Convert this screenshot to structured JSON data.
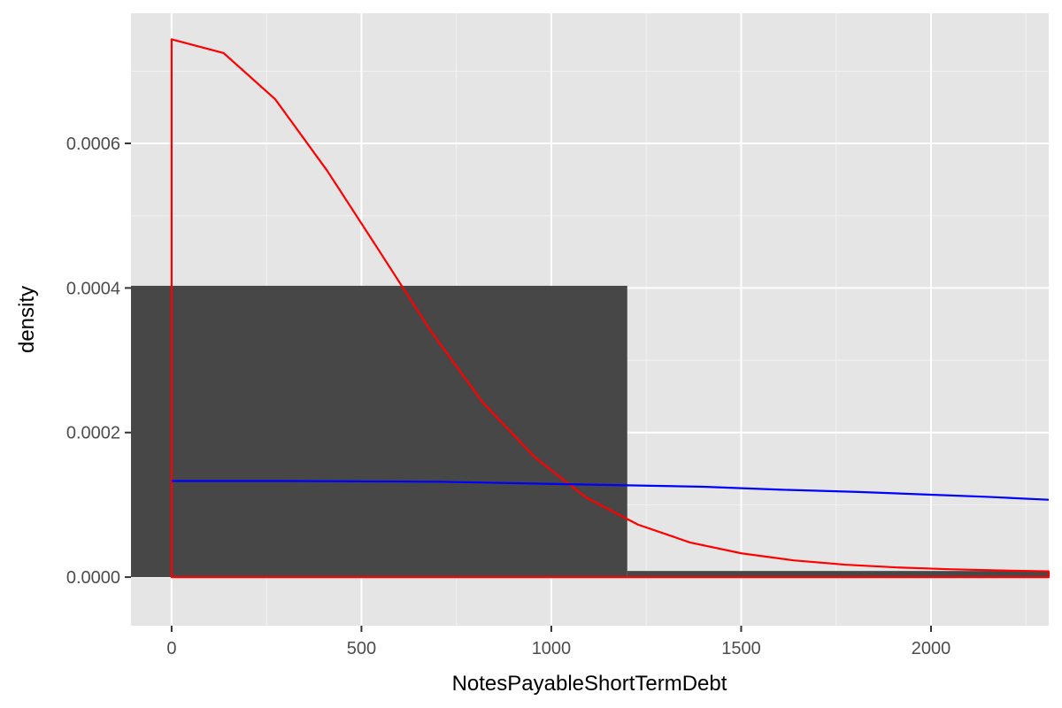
{
  "chart_data": {
    "type": "histogram",
    "title": "",
    "xlabel": "NotesPayableShortTermDebt",
    "ylabel": "density",
    "xlim": [
      -107,
      2310
    ],
    "ylim": [
      -6.72e-05,
      0.00078
    ],
    "grid": true,
    "legend": "none",
    "x_ticks": [
      {
        "value": 0,
        "label": "0"
      },
      {
        "value": 500,
        "label": "500"
      },
      {
        "value": 1000,
        "label": "1000"
      },
      {
        "value": 1500,
        "label": "1500"
      },
      {
        "value": 2000,
        "label": "2000"
      }
    ],
    "y_ticks": [
      {
        "value": 0,
        "label": "0.0000"
      },
      {
        "value": 0.0002,
        "label": "0.0002"
      },
      {
        "value": 0.0004,
        "label": "0.0004"
      },
      {
        "value": 0.0006,
        "label": "0.0006"
      }
    ],
    "histogram": {
      "color": "#474747",
      "bins": [
        {
          "x0": -107,
          "x1": 1200,
          "density": 0.000403
        },
        {
          "x0": 1200,
          "x1": 2310,
          "density": 8.5e-06
        }
      ]
    },
    "series": [
      {
        "color": "#ff0000",
        "closed_to_baseline_at": 0,
        "points": [
          [
            0,
            0.000744
          ],
          [
            137,
            0.000725
          ],
          [
            273,
            0.000661
          ],
          [
            410,
            0.000562
          ],
          [
            546,
            0.000452
          ],
          [
            683,
            0.00034
          ],
          [
            819,
            0.000242
          ],
          [
            956,
            0.000166
          ],
          [
            1092,
            0.00011
          ],
          [
            1228,
            7.27e-05
          ],
          [
            1365,
            4.8e-05
          ],
          [
            1501,
            3.29e-05
          ],
          [
            1638,
            2.32e-05
          ],
          [
            1774,
            1.72e-05
          ],
          [
            1911,
            1.34e-05
          ],
          [
            2047,
            1.09e-05
          ],
          [
            2184,
            9.2e-06
          ],
          [
            2310,
            8e-06
          ]
        ]
      },
      {
        "color": "#0000ff",
        "points": [
          [
            0,
            0.000133
          ],
          [
            300,
            0.000133
          ],
          [
            700,
            0.000132
          ],
          [
            1000,
            0.000129
          ],
          [
            1200,
            0.000127
          ],
          [
            1400,
            0.000125
          ],
          [
            1600,
            0.000121
          ],
          [
            1800,
            0.000118
          ],
          [
            2000,
            0.000114
          ],
          [
            2150,
            0.000111
          ],
          [
            2310,
            0.000107
          ]
        ]
      }
    ]
  }
}
